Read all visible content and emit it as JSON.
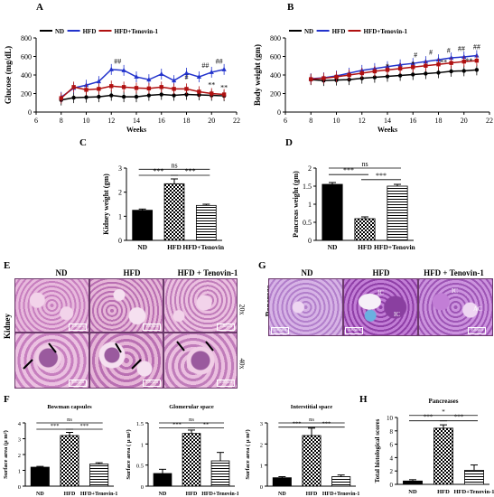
{
  "panel_letters": [
    "A",
    "B",
    "C",
    "D",
    "E",
    "F",
    "G",
    "H"
  ],
  "chart_data": [
    {
      "id": "A",
      "type": "line",
      "xlabel": "Weeks",
      "ylabel": "Glucose (mg/dL)",
      "xlim": [
        6,
        22
      ],
      "ylim": [
        0,
        800
      ],
      "xticks": [
        6,
        8,
        10,
        12,
        14,
        16,
        18,
        20,
        22
      ],
      "yticks": [
        0,
        200,
        400,
        600,
        800
      ],
      "legend_position": "top",
      "x": [
        8,
        9,
        10,
        11,
        12,
        13,
        14,
        15,
        16,
        17,
        18,
        19,
        20,
        21
      ],
      "series": [
        {
          "name": "ND",
          "color": "#000000",
          "marker": "circle",
          "values": [
            130,
            155,
            160,
            165,
            180,
            165,
            165,
            180,
            190,
            180,
            190,
            185,
            180,
            175
          ]
        },
        {
          "name": "HFD",
          "color": "#2233cc",
          "marker": "triangle",
          "values": [
            160,
            260,
            290,
            330,
            460,
            450,
            380,
            350,
            410,
            340,
            420,
            380,
            430,
            460
          ]
        },
        {
          "name": "HFD+Tenovin-1",
          "color": "#b01010",
          "marker": "square",
          "values": [
            150,
            270,
            240,
            250,
            280,
            270,
            260,
            255,
            270,
            250,
            250,
            220,
            200,
            190
          ]
        }
      ],
      "annotations": [
        {
          "x": 12.5,
          "y": 520,
          "text": "##"
        },
        {
          "x": 18,
          "y": 350,
          "text": "#"
        },
        {
          "x": 19.5,
          "y": 480,
          "text": "##"
        },
        {
          "x": 20.6,
          "y": 520,
          "text": "##"
        },
        {
          "x": 20,
          "y": 270,
          "text": "**"
        },
        {
          "x": 21,
          "y": 240,
          "text": "**"
        }
      ]
    },
    {
      "id": "B",
      "type": "line",
      "xlabel": "Weeks",
      "ylabel": "Body weight (gm)",
      "xlim": [
        6,
        22
      ],
      "ylim": [
        0,
        800
      ],
      "xticks": [
        6,
        8,
        10,
        12,
        14,
        16,
        18,
        20,
        22
      ],
      "yticks": [
        0,
        200,
        400,
        600,
        800
      ],
      "legend_position": "top",
      "x": [
        8,
        9,
        10,
        11,
        12,
        13,
        14,
        15,
        16,
        17,
        18,
        19,
        20,
        21
      ],
      "series": [
        {
          "name": "ND",
          "color": "#000000",
          "marker": "circle",
          "values": [
            350,
            340,
            345,
            350,
            365,
            375,
            385,
            395,
            405,
            415,
            425,
            440,
            445,
            455
          ]
        },
        {
          "name": "HFD",
          "color": "#2233cc",
          "marker": "triangle",
          "values": [
            360,
            370,
            390,
            420,
            450,
            470,
            490,
            510,
            525,
            545,
            565,
            585,
            595,
            610
          ]
        },
        {
          "name": "HFD+Tenovin-1",
          "color": "#b01010",
          "marker": "square",
          "values": [
            355,
            365,
            380,
            400,
            420,
            440,
            455,
            470,
            485,
            500,
            515,
            530,
            545,
            555
          ]
        }
      ],
      "annotations": [
        {
          "x": 16.2,
          "y": 590,
          "text": "#"
        },
        {
          "x": 17.4,
          "y": 620,
          "text": "#"
        },
        {
          "x": 18.8,
          "y": 640,
          "text": "#"
        },
        {
          "x": 19.8,
          "y": 660,
          "text": "##"
        },
        {
          "x": 21,
          "y": 680,
          "text": "##"
        },
        {
          "x": 14,
          "y": 470,
          "text": "*"
        },
        {
          "x": 16,
          "y": 495,
          "text": "*"
        },
        {
          "x": 18.4,
          "y": 510,
          "text": "**"
        },
        {
          "x": 20.4,
          "y": 525,
          "text": "**"
        }
      ]
    },
    {
      "id": "C",
      "type": "bar",
      "ylabel": "Kidney weight (gm)",
      "categories": [
        "ND",
        "HFD",
        "HFD+Tenovin-1"
      ],
      "values": [
        1.25,
        2.35,
        1.45
      ],
      "errors": [
        0.05,
        0.2,
        0.05
      ],
      "ylim": [
        0,
        3
      ],
      "yticks": [
        0,
        1,
        2,
        3
      ],
      "fills": [
        "solid",
        "check",
        "hstripe"
      ],
      "brackets": [
        {
          "from": 0,
          "to": 2,
          "level": 2.95,
          "text": "ns"
        },
        {
          "from": 0,
          "to": 1,
          "level": 2.7,
          "text": "***"
        },
        {
          "from": 1,
          "to": 2,
          "level": 2.7,
          "text": "***"
        }
      ]
    },
    {
      "id": "D",
      "type": "bar",
      "ylabel": "Pancreas weight (gm)",
      "categories": [
        "ND",
        "HFD",
        "HFD+Tenovin-1"
      ],
      "values": [
        1.55,
        0.6,
        1.5
      ],
      "errors": [
        0.05,
        0.05,
        0.05
      ],
      "ylim": [
        0,
        2
      ],
      "yticks": [
        0.0,
        0.5,
        1.0,
        1.5,
        2.0
      ],
      "fills": [
        "solid",
        "check",
        "hstripe"
      ],
      "brackets": [
        {
          "from": 0,
          "to": 2,
          "level": 2.0,
          "text": "ns"
        },
        {
          "from": 0,
          "to": 1,
          "level": 1.82,
          "text": "***"
        },
        {
          "from": 1,
          "to": 2,
          "level": 1.68,
          "text": "***"
        }
      ]
    },
    {
      "id": "F1",
      "type": "bar",
      "title": "Bowman capsules",
      "ylabel": "Surface area (μ m²)",
      "categories": [
        "ND",
        "HFD",
        "HFD+Tenovin-1"
      ],
      "values": [
        1.2,
        3.2,
        1.4
      ],
      "errors": [
        0.05,
        0.2,
        0.08
      ],
      "ylim": [
        0,
        4
      ],
      "yticks": [
        0,
        1,
        2,
        3,
        4
      ],
      "fills": [
        "solid",
        "check",
        "hstripe"
      ],
      "brackets": [
        {
          "from": 0,
          "to": 2,
          "level": 4.0,
          "text": "ns"
        },
        {
          "from": 0,
          "to": 1,
          "level": 3.6,
          "text": "***"
        },
        {
          "from": 1,
          "to": 2,
          "level": 3.6,
          "text": "***"
        }
      ]
    },
    {
      "id": "F2",
      "type": "bar",
      "title": "Glomerular space",
      "ylabel": "Surface area ( μ m²)",
      "categories": [
        "ND",
        "HFD",
        "HFD+Tenovin-1"
      ],
      "values": [
        0.3,
        1.25,
        0.6
      ],
      "errors": [
        0.1,
        0.08,
        0.2
      ],
      "ylim": [
        0,
        1.5
      ],
      "yticks": [
        0.0,
        0.5,
        1.0,
        1.5
      ],
      "fills": [
        "solid",
        "check",
        "hstripe"
      ],
      "brackets": [
        {
          "from": 0,
          "to": 2,
          "level": 1.5,
          "text": "ns"
        },
        {
          "from": 0,
          "to": 1,
          "level": 1.38,
          "text": "***"
        },
        {
          "from": 1,
          "to": 2,
          "level": 1.38,
          "text": "**"
        }
      ]
    },
    {
      "id": "F3",
      "type": "bar",
      "title": "Interstitial space",
      "ylabel": "Surface area ( μ m²)",
      "categories": [
        "ND",
        "HFD",
        "HFD+Tenovin-1"
      ],
      "values": [
        0.4,
        2.4,
        0.45
      ],
      "errors": [
        0.05,
        0.35,
        0.08
      ],
      "ylim": [
        0,
        3
      ],
      "yticks": [
        0,
        1,
        2,
        3
      ],
      "fills": [
        "solid",
        "check",
        "hstripe"
      ],
      "brackets": [
        {
          "from": 0,
          "to": 2,
          "level": 3.0,
          "text": "ns"
        },
        {
          "from": 0,
          "to": 1,
          "level": 2.8,
          "text": "***"
        },
        {
          "from": 1,
          "to": 2,
          "level": 2.8,
          "text": "***"
        }
      ]
    },
    {
      "id": "H",
      "type": "bar",
      "title": "Pancreases",
      "ylabel": "Total histological scores",
      "categories": [
        "ND",
        "HFD",
        "HFD+Tenovin-1"
      ],
      "values": [
        0.5,
        8.4,
        2.1
      ],
      "errors": [
        0.2,
        0.5,
        0.8
      ],
      "ylim": [
        0,
        10
      ],
      "yticks": [
        0,
        2,
        4,
        6,
        8,
        10
      ],
      "fills": [
        "solid",
        "check",
        "hstripe"
      ],
      "brackets": [
        {
          "from": 0,
          "to": 2,
          "level": 10.3,
          "text": "*"
        },
        {
          "from": 0,
          "to": 1,
          "level": 9.5,
          "text": "***"
        },
        {
          "from": 1,
          "to": 2,
          "level": 9.5,
          "text": "***"
        }
      ]
    }
  ],
  "micrographs": {
    "E": {
      "columns": [
        "ND",
        "HFD",
        "HFD + Tenovin-1"
      ],
      "row_labels": [
        "20x",
        "40x"
      ],
      "side_label": "Kidney",
      "scale_bar": "100μm"
    },
    "G": {
      "columns": [
        "ND",
        "HFD",
        "HFD + Tenovin-1"
      ],
      "side_label": "Pancreas",
      "scale_bar": "100μm",
      "region_labels": [
        "IC",
        "IC",
        "IC",
        "AC"
      ]
    }
  },
  "colors": {
    "nd": "#000000",
    "hfd": "#2233cc",
    "tenovin": "#b01010",
    "he_stain_light": "#e6b6d8",
    "he_stain_dark": "#9a5a9e"
  }
}
